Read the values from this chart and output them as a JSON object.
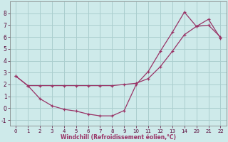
{
  "xlabel": "Windchill (Refroidissement éolien,°C)",
  "background_color": "#ceeaea",
  "grid_color": "#aacece",
  "line_color": "#993366",
  "ylim": [
    -1.5,
    9.0
  ],
  "yticks": [
    -1,
    0,
    1,
    2,
    3,
    4,
    5,
    6,
    7,
    8
  ],
  "x_labels": [
    "0",
    "1",
    "2",
    "3",
    "4",
    "5",
    "6",
    "7",
    "8",
    "9",
    "10",
    "11",
    "12",
    "13",
    "14",
    "20",
    "21",
    "22"
  ],
  "x_positions": [
    0,
    1,
    2,
    3,
    4,
    5,
    6,
    7,
    8,
    9,
    10,
    11,
    12,
    13,
    14,
    15,
    16,
    17
  ],
  "xtick_positions": [
    0,
    1,
    2,
    3,
    4,
    5,
    6,
    7,
    8,
    9,
    10,
    11,
    12,
    13,
    14,
    15,
    16,
    17
  ],
  "series1_y": [
    2.7,
    1.9,
    0.8,
    0.2,
    -0.1,
    -0.25,
    -0.5,
    -0.65,
    -0.65,
    -0.2,
    2.0,
    3.1,
    4.8,
    6.4,
    8.1,
    6.9,
    7.5,
    5.9
  ],
  "series2_y": [
    2.7,
    1.9,
    1.9,
    1.9,
    1.9,
    1.9,
    1.9,
    1.9,
    1.9,
    2.0,
    2.1,
    2.5,
    3.5,
    4.8,
    6.2,
    6.9,
    7.0,
    6.0
  ],
  "figsize": [
    3.2,
    2.0
  ],
  "dpi": 100
}
